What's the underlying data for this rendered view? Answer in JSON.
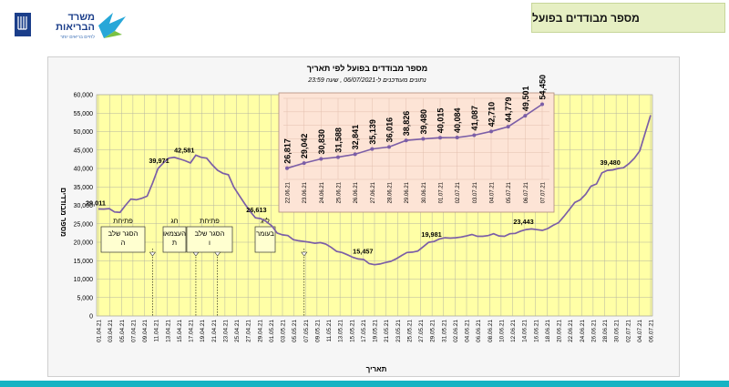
{
  "header": {
    "logo_name": "משרד הבריאות",
    "logo_tagline": "לחיים בריאים יותר",
    "slide_title": "מספר מבודדים בפועל"
  },
  "chart_data": {
    "type": "line",
    "title": "מספר מבודדים בפועל לפי תאריך",
    "subtitle": "נתונים מעודכנים ל-06/07/2021 , שעה 23:59",
    "xlabel": "תאריך",
    "ylabel": "מספר מבודדים",
    "ylim": [
      0,
      60000
    ],
    "yticks": [
      "0",
      "5,000",
      "10,000",
      "15,000",
      "20,000",
      "25,000",
      "30,000",
      "35,000",
      "40,000",
      "45,000",
      "50,000",
      "55,000",
      "60,000"
    ],
    "grid": true,
    "line_color": "#7b5ea7",
    "plot_bg": "#ffffa6",
    "xtick_labels": [
      "01.04.21",
      "03.04.21",
      "05.04.21",
      "07.04.21",
      "09.04.21",
      "11.04.21",
      "13.04.21",
      "15.04.21",
      "17.04.21",
      "19.04.21",
      "21.04.21",
      "23.04.21",
      "25.04.21",
      "27.04.21",
      "29.04.21",
      "01.05.21",
      "03.05.21",
      "05.05.21",
      "07.05.21",
      "09.05.21",
      "11.05.21",
      "13.05.21",
      "15.05.21",
      "17.05.21",
      "19.05.21",
      "21.05.21",
      "23.05.21",
      "25.05.21",
      "27.05.21",
      "29.05.21",
      "31.05.21",
      "02.06.21",
      "04.06.21",
      "06.06.21",
      "08.06.21",
      "10.06.21",
      "12.06.21",
      "14.06.21",
      "16.06.21",
      "18.06.21",
      "20.06.21",
      "22.06.21",
      "24.06.21",
      "26.06.21",
      "28.06.21",
      "30.06.21",
      "02.07.21",
      "04.07.21",
      "06.07.21"
    ],
    "values": [
      29011,
      29000,
      29100,
      28200,
      28100,
      30000,
      31700,
      31500,
      31900,
      32500,
      36000,
      39971,
      41500,
      42800,
      43000,
      42581,
      42100,
      41500,
      43600,
      43000,
      42800,
      41000,
      39500,
      38700,
      38300,
      35000,
      32700,
      30500,
      28400,
      26613,
      26400,
      25600,
      24500,
      22500,
      22000,
      21800,
      20700,
      20400,
      20200,
      20000,
      19700,
      19900,
      19500,
      18600,
      17500,
      17200,
      16600,
      15900,
      15457,
      15300,
      14200,
      13900,
      14100,
      14500,
      14800,
      15500,
      16400,
      17200,
      17300,
      17600,
      18800,
      19981,
      20200,
      20900,
      21200,
      21100,
      21200,
      21400,
      21700,
      22100,
      21600,
      21600,
      21800,
      22300,
      21700,
      21600,
      22300,
      22400,
      23000,
      23443,
      23600,
      23400,
      23200,
      23700,
      24600,
      25300,
      27000,
      28900,
      30800,
      31500,
      33000,
      35200,
      35800,
      38800,
      39480,
      39600,
      40000,
      40200,
      41300,
      42800,
      44800,
      49700,
      54450
    ],
    "data_labels": [
      {
        "index": 0,
        "text": "29,011"
      },
      {
        "index": 11,
        "text": "39,971"
      },
      {
        "index": 15,
        "text": "42,581"
      },
      {
        "index": 29,
        "text": "26,613"
      },
      {
        "index": 48,
        "text": "15,457"
      },
      {
        "index": 61,
        "text": "19,981"
      },
      {
        "index": 79,
        "text": "23,443"
      },
      {
        "index": 94,
        "text": "39,480"
      }
    ],
    "annotations": [
      {
        "line1": "פתיחת",
        "line2": "הסגר שלב",
        "line3": "ה",
        "index": 10
      },
      {
        "line1": "חג",
        "line2": "העצמאו",
        "line3": "ת",
        "index": 18
      },
      {
        "line1": "פתיחת",
        "line2": "הסגר שלב",
        "line3": "ו",
        "index": 22
      },
      {
        "line1": "ל\"ג",
        "line2": "בעומר",
        "line3": "",
        "index": 38
      }
    ],
    "inset": {
      "categories": [
        "22.06.21",
        "23.06.21",
        "24.06.21",
        "25.06.21",
        "26.06.21",
        "27.06.21",
        "28.06.21",
        "29.06.21",
        "30.06.21",
        "01.07.21",
        "02.07.21",
        "03.07.21",
        "04.07.21",
        "05.07.21",
        "06.07.21",
        "07.07.21"
      ],
      "values": [
        26817,
        29042,
        30830,
        31588,
        32841,
        35139,
        36016,
        38826,
        39480,
        40015,
        40084,
        41087,
        42710,
        44779,
        49501,
        54450
      ],
      "value_labels": [
        "26,817",
        "29,042",
        "30,830",
        "31,588",
        "32,841",
        "35,139",
        "36,016",
        "38,826",
        "39,480",
        "40,015",
        "40,084",
        "41,087",
        "42,710",
        "44,779",
        "49,501",
        "54,450"
      ],
      "bg": "#fde4d6"
    }
  }
}
